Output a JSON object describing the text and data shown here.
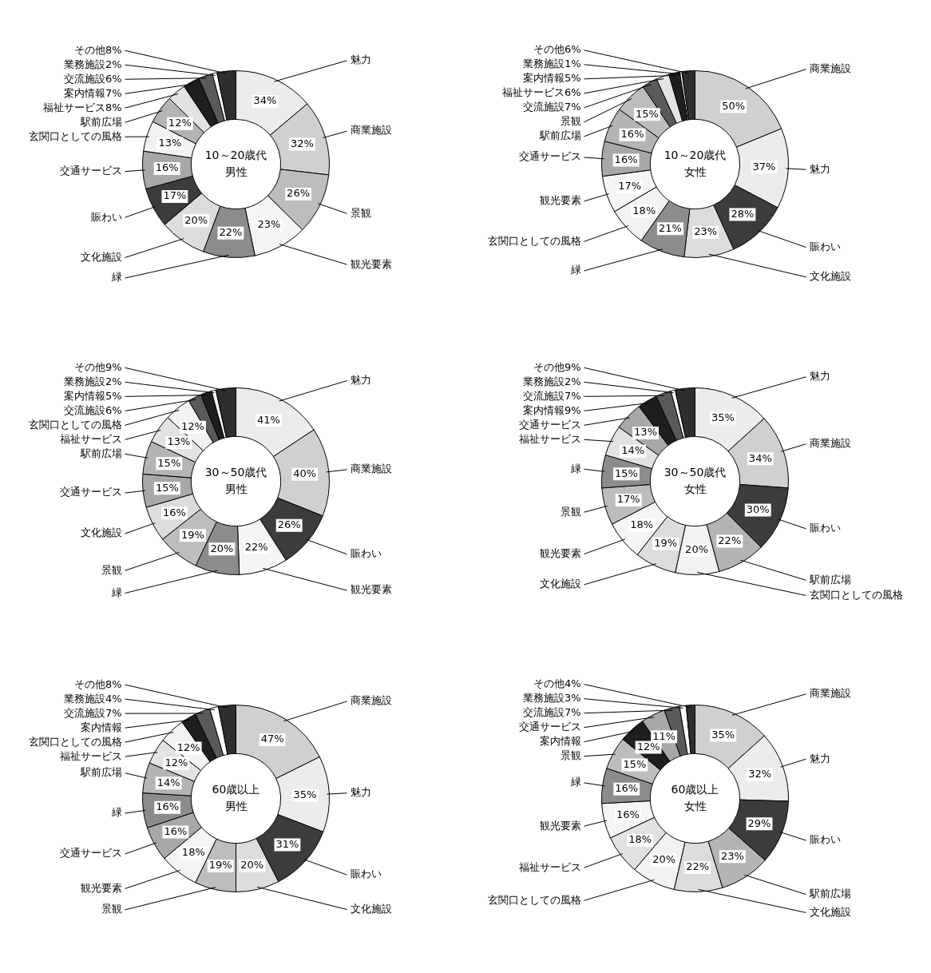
{
  "chart_data": [
    {
      "type": "donut",
      "title": "10～20歳代",
      "subtitle": "男性",
      "categories": [
        "魅力",
        "商業施設",
        "景観",
        "観光要素",
        "緑",
        "文化施設",
        "賑わい",
        "交通サービス",
        "玄関口としての風格",
        "駅前広場",
        "福祉サービス",
        "案内情報",
        "交流施設",
        "業務施設",
        "その他"
      ],
      "values": [
        34,
        32,
        26,
        23,
        22,
        20,
        17,
        16,
        13,
        12,
        8,
        7,
        6,
        2,
        8
      ],
      "value_labels": [
        "34%",
        "32%",
        "26%",
        "23%",
        "22%",
        "20%",
        "17%",
        "16%",
        "13%",
        "12%",
        "8%",
        "7%",
        "6%",
        "2%",
        "8%"
      ],
      "colors": [
        "#ececec",
        "#d0d0d0",
        "#bdbdbd",
        "#f5f5f5",
        "#8c8c8c",
        "#dcdcdc",
        "#3c3c3c",
        "#a8a8a8",
        "#f2f2f2",
        "#b4b4b4",
        "#e2e2e2",
        "#1e1e1e",
        "#5a5a5a",
        "#ffffff",
        "#2e2e2e"
      ]
    },
    {
      "type": "donut",
      "title": "10～20歳代",
      "subtitle": "女性",
      "categories": [
        "商業施設",
        "魅力",
        "賑わい",
        "文化施設",
        "緑",
        "玄関口としての風格",
        "観光要素",
        "交通サービス",
        "駅前広場",
        "景観",
        "交流施設",
        "福祉サービス",
        "案内情報",
        "業務施設",
        "その他"
      ],
      "values": [
        50,
        37,
        28,
        23,
        21,
        18,
        17,
        16,
        16,
        15,
        7,
        6,
        5,
        1,
        6
      ],
      "value_labels": [
        "50%",
        "37%",
        "28%",
        "23%",
        "21%",
        "18%",
        "17%",
        "16%",
        "16%",
        "15%",
        "7%",
        "6%",
        "5%",
        "1%",
        "6%"
      ],
      "colors": [
        "#d0d0d0",
        "#ececec",
        "#3c3c3c",
        "#dcdcdc",
        "#8c8c8c",
        "#f2f2f2",
        "#f5f5f5",
        "#a8a8a8",
        "#b4b4b4",
        "#bdbdbd",
        "#5a5a5a",
        "#e2e2e2",
        "#1e1e1e",
        "#ffffff",
        "#2e2e2e"
      ]
    },
    {
      "type": "donut",
      "title": "30～50歳代",
      "subtitle": "男性",
      "categories": [
        "魅力",
        "商業施設",
        "賑わい",
        "観光要素",
        "緑",
        "景観",
        "文化施設",
        "交通サービス",
        "駅前広場",
        "福祉サービス",
        "玄関口としての風格",
        "交流施設",
        "案内情報",
        "業務施設",
        "その他"
      ],
      "values": [
        41,
        40,
        26,
        22,
        20,
        19,
        16,
        15,
        15,
        13,
        12,
        6,
        5,
        2,
        9
      ],
      "value_labels": [
        "41%",
        "40%",
        "26%",
        "22%",
        "20%",
        "19%",
        "16%",
        "15%",
        "15%",
        "13%",
        "12%",
        "6%",
        "5%",
        "2%",
        "9%"
      ],
      "colors": [
        "#ececec",
        "#d0d0d0",
        "#3c3c3c",
        "#f5f5f5",
        "#8c8c8c",
        "#bdbdbd",
        "#dcdcdc",
        "#a8a8a8",
        "#b4b4b4",
        "#e2e2e2",
        "#f2f2f2",
        "#5a5a5a",
        "#1e1e1e",
        "#ffffff",
        "#2e2e2e"
      ]
    },
    {
      "type": "donut",
      "title": "30～50歳代",
      "subtitle": "女性",
      "categories": [
        "魅力",
        "商業施設",
        "賑わい",
        "駅前広場",
        "玄関口としての風格",
        "文化施設",
        "観光要素",
        "景観",
        "緑",
        "福祉サービス",
        "交通サービス",
        "案内情報",
        "交流施設",
        "業務施設",
        "その他"
      ],
      "values": [
        35,
        34,
        30,
        22,
        20,
        19,
        18,
        17,
        15,
        14,
        13,
        9,
        7,
        2,
        9
      ],
      "value_labels": [
        "35%",
        "34%",
        "30%",
        "22%",
        "20%",
        "19%",
        "18%",
        "17%",
        "15%",
        "14%",
        "13%",
        "9%",
        "7%",
        "2%",
        "9%"
      ],
      "colors": [
        "#ececec",
        "#d0d0d0",
        "#3c3c3c",
        "#b4b4b4",
        "#f2f2f2",
        "#dcdcdc",
        "#f5f5f5",
        "#bdbdbd",
        "#8c8c8c",
        "#e2e2e2",
        "#a8a8a8",
        "#1e1e1e",
        "#5a5a5a",
        "#ffffff",
        "#2e2e2e"
      ]
    },
    {
      "type": "donut",
      "title": "60歳以上",
      "subtitle": "男性",
      "categories": [
        "商業施設",
        "魅力",
        "賑わい",
        "文化施設",
        "景観",
        "観光要素",
        "交通サービス",
        "緑",
        "駅前広場",
        "福祉サービス",
        "玄関口としての風格",
        "案内情報",
        "交流施設",
        "業務施設",
        "その他"
      ],
      "values": [
        47,
        35,
        31,
        20,
        19,
        18,
        16,
        16,
        14,
        12,
        12,
        7,
        7,
        4,
        8
      ],
      "value_labels": [
        "47%",
        "35%",
        "31%",
        "20%",
        "19%",
        "18%",
        "16%",
        "16%",
        "14%",
        "12%",
        "12%",
        null,
        "7%",
        "4%",
        "8%"
      ],
      "colors": [
        "#d0d0d0",
        "#ececec",
        "#3c3c3c",
        "#dcdcdc",
        "#bdbdbd",
        "#f5f5f5",
        "#a8a8a8",
        "#8c8c8c",
        "#b4b4b4",
        "#e2e2e2",
        "#f2f2f2",
        "#1e1e1e",
        "#5a5a5a",
        "#ffffff",
        "#2e2e2e"
      ]
    },
    {
      "type": "donut",
      "title": "60歳以上",
      "subtitle": "女性",
      "categories": [
        "商業施設",
        "魅力",
        "賑わい",
        "駅前広場",
        "文化施設",
        "玄関口としての風格",
        "福祉サービス",
        "観光要素",
        "緑",
        "景観",
        "案内情報",
        "交通サービス",
        "交流施設",
        "業務施設",
        "その他"
      ],
      "values": [
        35,
        32,
        29,
        23,
        22,
        20,
        18,
        16,
        16,
        15,
        12,
        11,
        7,
        3,
        4
      ],
      "value_labels": [
        "35%",
        "32%",
        "29%",
        "23%",
        "22%",
        "20%",
        "18%",
        "16%",
        "16%",
        "15%",
        "12%",
        "11%",
        "7%",
        "3%",
        "4%"
      ],
      "colors": [
        "#d0d0d0",
        "#ececec",
        "#3c3c3c",
        "#b4b4b4",
        "#dcdcdc",
        "#f2f2f2",
        "#e2e2e2",
        "#f5f5f5",
        "#8c8c8c",
        "#bdbdbd",
        "#1e1e1e",
        "#a8a8a8",
        "#5a5a5a",
        "#ffffff",
        "#2e2e2e"
      ]
    }
  ]
}
